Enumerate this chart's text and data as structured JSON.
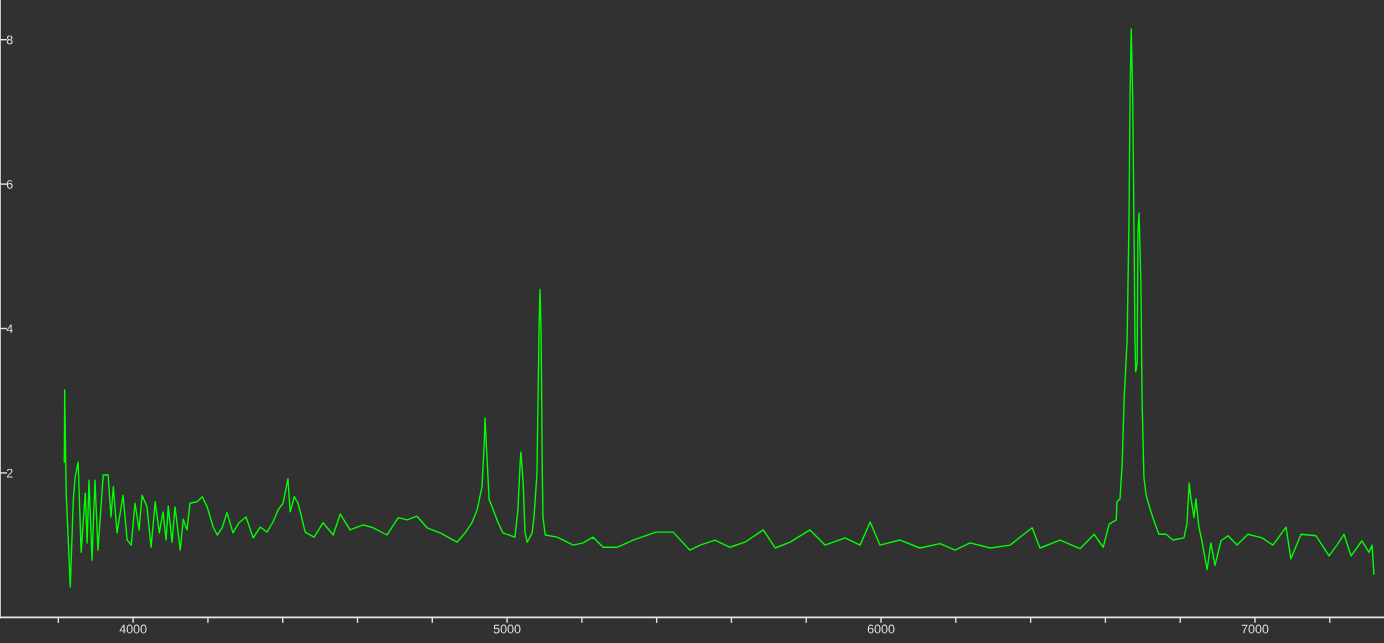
{
  "chart_data": {
    "type": "line",
    "color": "#00ff00",
    "grid": false,
    "marker": "none",
    "line_style": "solid",
    "xlim": [
      3644,
      7345
    ],
    "ylim": [
      0,
      8.55
    ],
    "xticks": [
      {
        "value": 3800,
        "label": null
      },
      4000,
      {
        "value": 4200,
        "label": null
      },
      {
        "value": 4400,
        "label": null
      },
      {
        "value": 4600,
        "label": null
      },
      {
        "value": 4800,
        "label": null
      },
      5000,
      {
        "value": 5200,
        "label": null
      },
      {
        "value": 5400,
        "label": null
      },
      {
        "value": 5600,
        "label": null
      },
      {
        "value": 5800,
        "label": null
      },
      6000,
      {
        "value": 6200,
        "label": null
      },
      {
        "value": 6400,
        "label": null
      },
      {
        "value": 6600,
        "label": null
      },
      {
        "value": 6800,
        "label": null
      },
      7000,
      {
        "value": 7200,
        "label": null
      }
    ],
    "yticks": [
      2,
      4,
      6,
      8
    ],
    "x": [
      3816,
      3817,
      3821,
      3832,
      3840,
      3845,
      3853,
      3861,
      3872,
      3877,
      3882,
      3890,
      3898,
      3906,
      3920,
      3933,
      3941,
      3947,
      3957,
      3973,
      3984,
      3995,
      4005,
      4016,
      4024,
      4037,
      4048,
      4059,
      4070,
      4080,
      4088,
      4094,
      4104,
      4112,
      4126,
      4134,
      4144,
      4152,
      4171,
      4185,
      4198,
      4206,
      4214,
      4225,
      4238,
      4251,
      4267,
      4283,
      4302,
      4321,
      4340,
      4358,
      4374,
      4388,
      4401,
      4414,
      4420,
      4431,
      4441,
      4449,
      4460,
      4484,
      4508,
      4535,
      4554,
      4580,
      4615,
      4642,
      4679,
      4709,
      4733,
      4759,
      4786,
      4821,
      4866,
      4888,
      4906,
      4920,
      4933,
      4939,
      4941,
      4947,
      4952,
      4963,
      4976,
      4989,
      5021,
      5029,
      5035,
      5037,
      5043,
      5048,
      5054,
      5067,
      5072,
      5080,
      5083,
      5086,
      5088,
      5091,
      5094,
      5096,
      5102,
      5134,
      5177,
      5203,
      5230,
      5257,
      5294,
      5337,
      5398,
      5444,
      5489,
      5516,
      5556,
      5596,
      5636,
      5685,
      5717,
      5757,
      5810,
      5850,
      5904,
      5944,
      5971,
      5997,
      6051,
      6104,
      6158,
      6198,
      6238,
      6292,
      6345,
      6404,
      6425,
      6479,
      6532,
      6570,
      6594,
      6610,
      6629,
      6631,
      6639,
      6645,
      6650,
      6655,
      6658,
      6663,
      6666,
      6669,
      6673,
      6677,
      6679,
      6681,
      6685,
      6687,
      6690,
      6695,
      6698,
      6703,
      6709,
      6719,
      6727,
      6743,
      6762,
      6781,
      6810,
      6818,
      6824,
      6829,
      6837,
      6842,
      6850,
      6858,
      6872,
      6882,
      6893,
      6909,
      6928,
      6952,
      6981,
      7019,
      7048,
      7083,
      7096,
      7123,
      7163,
      7198,
      7219,
      7238,
      7257,
      7286,
      7305,
      7313,
      7318
    ],
    "values": [
      2.15,
      3.15,
      1.72,
      0.42,
      1.63,
      1.94,
      2.15,
      0.9,
      1.72,
      1.03,
      1.9,
      0.79,
      1.9,
      0.93,
      1.97,
      1.97,
      1.39,
      1.81,
      1.17,
      1.69,
      1.07,
      1.0,
      1.58,
      1.21,
      1.69,
      1.53,
      0.97,
      1.6,
      1.17,
      1.46,
      1.07,
      1.54,
      1.04,
      1.53,
      0.93,
      1.36,
      1.21,
      1.58,
      1.6,
      1.67,
      1.53,
      1.39,
      1.25,
      1.14,
      1.24,
      1.45,
      1.17,
      1.31,
      1.39,
      1.1,
      1.25,
      1.18,
      1.32,
      1.49,
      1.58,
      1.92,
      1.46,
      1.67,
      1.58,
      1.42,
      1.18,
      1.11,
      1.31,
      1.14,
      1.43,
      1.21,
      1.28,
      1.24,
      1.14,
      1.38,
      1.35,
      1.4,
      1.24,
      1.17,
      1.04,
      1.17,
      1.31,
      1.49,
      1.81,
      2.42,
      2.76,
      2.14,
      1.63,
      1.49,
      1.31,
      1.17,
      1.11,
      1.49,
      2.14,
      2.29,
      1.86,
      1.17,
      1.04,
      1.17,
      1.39,
      2.0,
      3.11,
      4.12,
      4.54,
      3.94,
      2.11,
      1.38,
      1.14,
      1.11,
      1.0,
      1.03,
      1.11,
      0.97,
      0.97,
      1.07,
      1.18,
      1.18,
      0.93,
      1.0,
      1.07,
      0.97,
      1.04,
      1.21,
      0.96,
      1.04,
      1.21,
      1.0,
      1.1,
      1.0,
      1.32,
      1.0,
      1.07,
      0.96,
      1.02,
      0.93,
      1.03,
      0.96,
      1.0,
      1.24,
      0.96,
      1.07,
      0.95,
      1.15,
      0.97,
      1.29,
      1.35,
      1.6,
      1.64,
      2.14,
      3.02,
      3.52,
      3.83,
      5.45,
      7.21,
      8.15,
      7.24,
      5.1,
      3.87,
      3.4,
      3.52,
      5.35,
      5.6,
      4.62,
      3.02,
      1.94,
      1.69,
      1.51,
      1.38,
      1.15,
      1.15,
      1.07,
      1.1,
      1.29,
      1.86,
      1.64,
      1.38,
      1.64,
      1.25,
      1.06,
      0.66,
      1.03,
      0.72,
      1.06,
      1.13,
      1.0,
      1.15,
      1.1,
      1.0,
      1.25,
      0.81,
      1.15,
      1.13,
      0.85,
      1.0,
      1.15,
      0.85,
      1.06,
      0.9,
      1.0,
      0.6
    ]
  }
}
